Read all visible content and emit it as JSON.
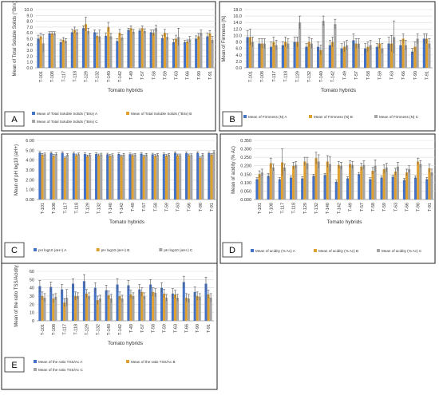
{
  "colors": {
    "A": "#4472C4",
    "B": "#E0A030",
    "C": "#A5A5A5",
    "errorbar": "#555555",
    "frame": "#222222",
    "grid": "#D9D9D9",
    "axis_text": "#333333"
  },
  "chart_data": [
    {
      "panel": "A",
      "type": "bar",
      "xlabel": "Tomato hybrids",
      "ylabel": "Mean of Total Soluble Solids (°Brix)",
      "ylim": [
        0.0,
        10.0
      ],
      "yticks": [
        "0.0",
        "1.0",
        "2.0",
        "3.0",
        "4.0",
        "5.0",
        "6.0",
        "7.0",
        "8.0",
        "9.0",
        "10.0"
      ],
      "categories": [
        "T-101",
        "T-108",
        "T-117",
        "T-118",
        "T-129",
        "T-132",
        "T-140",
        "T-142",
        "T-49",
        "T-57",
        "T-58",
        "T-59",
        "T-63",
        "T-66",
        "T-90",
        "T-91"
      ],
      "series": [
        {
          "name": "Mean of Total Soluble Solids (°Brix) A",
          "values": [
            5.0,
            5.9,
            4.4,
            6.1,
            6.8,
            6.1,
            5.5,
            4.6,
            6.5,
            6.4,
            6.1,
            5.1,
            4.4,
            4.4,
            5.0,
            5.4
          ],
          "errors": [
            0.6,
            0.3,
            0.4,
            0.5,
            0.4,
            0.4,
            0.5,
            0.4,
            0.3,
            0.3,
            0.4,
            0.5,
            0.5,
            0.3,
            0.5,
            0.6
          ]
        },
        {
          "name": "Mean of Total Soluble Solids (°Brix) B",
          "values": [
            5.4,
            5.9,
            4.8,
            6.5,
            7.5,
            5.5,
            7.0,
            6.0,
            6.8,
            6.8,
            6.0,
            6.0,
            5.0,
            4.5,
            5.4,
            5.9
          ],
          "errors": [
            0.5,
            0.3,
            0.4,
            0.5,
            1.2,
            0.5,
            0.8,
            0.6,
            0.4,
            0.4,
            0.5,
            0.6,
            0.6,
            0.3,
            0.5,
            0.5
          ]
        },
        {
          "name": "Mean of Total Soluble Solids (°Brix) C",
          "values": [
            4.2,
            5.9,
            4.6,
            6.1,
            6.3,
            5.4,
            5.4,
            5.2,
            6.2,
            6.3,
            6.8,
            5.3,
            5.3,
            4.9,
            6.0,
            4.8
          ],
          "errors": [
            1.5,
            0.3,
            0.4,
            0.4,
            0.5,
            1.1,
            0.5,
            0.5,
            0.4,
            0.4,
            0.5,
            0.5,
            1.5,
            0.5,
            0.5,
            0.6
          ]
        }
      ],
      "legend": [
        "Mean of Total Soluble Solids (°Brix) A",
        "Mean of Total Soluble Solids (°Brix) B",
        "Mean of Total Soluble Solids (°Brix) C"
      ]
    },
    {
      "panel": "B",
      "type": "bar",
      "xlabel": "Tomato  hybrids",
      "ylabel": "Mean of Firmness (N)",
      "ylim": [
        0.0,
        18.0
      ],
      "yticks": [
        "0.0",
        "2.0",
        "4.0",
        "6.0",
        "8.0",
        "10.0",
        "12.0",
        "14.0",
        "16.0",
        "18.0"
      ],
      "categories": [
        "T-101",
        "T-108",
        "T-117",
        "T-118",
        "T-129",
        "T-132",
        "T-140",
        "T-142",
        "T-49",
        "T-57",
        "T-58",
        "T-59",
        "T-63",
        "T-66",
        "T-90",
        "T-91"
      ],
      "series": [
        {
          "name": "Mean of Firmness (N) A",
          "values": [
            9.5,
            7.5,
            6.5,
            7.0,
            8.0,
            6.5,
            6.5,
            7.0,
            6.0,
            8.5,
            6.0,
            6.5,
            7.5,
            7.0,
            5.0,
            9.0
          ],
          "errors": [
            2.0,
            1.5,
            1.5,
            1.0,
            1.5,
            1.0,
            1.5,
            1.5,
            1.5,
            2.0,
            1.5,
            1.0,
            2.0,
            1.5,
            1.0,
            1.5
          ]
        },
        {
          "name": "Mean  of  Firmness (N) B",
          "values": [
            9.5,
            7.5,
            8.0,
            8.0,
            8.0,
            8.0,
            5.5,
            8.0,
            6.5,
            7.5,
            6.5,
            7.5,
            7.5,
            9.0,
            6.5,
            9.0
          ],
          "errors": [
            2.5,
            1.5,
            1.5,
            1.5,
            1.5,
            1.5,
            1.5,
            1.5,
            1.5,
            1.5,
            1.5,
            1.5,
            2.5,
            1.5,
            1.5,
            1.5
          ]
        },
        {
          "name": "Mean of Firmness (N) C",
          "values": [
            8.0,
            7.5,
            7.0,
            7.5,
            14.0,
            7.5,
            14.5,
            13.5,
            7.0,
            7.5,
            7.0,
            6.0,
            9.5,
            7.0,
            9.0,
            7.5
          ],
          "errors": [
            1.5,
            1.5,
            1.5,
            1.5,
            2.0,
            1.5,
            1.5,
            1.5,
            1.5,
            1.5,
            1.5,
            1.5,
            5.0,
            1.5,
            1.5,
            1.5
          ]
        }
      ],
      "legend": [
        "Mean of Firmness (N) A",
        "Mean  of  Firmness (N) B",
        "Mean of Firmness (N) C"
      ]
    },
    {
      "panel": "C",
      "type": "bar",
      "xlabel": "Tomato hybrids",
      "ylabel": "Mean of pH log10 (aH+)",
      "ylim": [
        0.0,
        6.0
      ],
      "yticks": [
        "0.00",
        "1.00",
        "2.00",
        "3.00",
        "4.00",
        "5.00",
        "6.00"
      ],
      "categories": [
        "T-101",
        "T-108",
        "T-117",
        "T-118",
        "T-129",
        "T-132",
        "T-140",
        "T-142",
        "T-49",
        "T-57",
        "T-58",
        "T-59",
        "T-63",
        "T-66",
        "T-90",
        "T-91"
      ],
      "series": [
        {
          "name": "pH log10 (aH+) A",
          "values": [
            4.75,
            4.72,
            4.73,
            4.68,
            4.62,
            4.62,
            4.58,
            4.62,
            4.6,
            4.65,
            4.58,
            4.6,
            4.72,
            4.7,
            4.73,
            4.7
          ],
          "errors": [
            0.12,
            0.12,
            0.12,
            0.12,
            0.12,
            0.12,
            0.12,
            0.12,
            0.12,
            0.12,
            0.12,
            0.12,
            0.12,
            0.12,
            0.12,
            0.12
          ]
        },
        {
          "name": "pH log10 (aH+) B",
          "values": [
            4.55,
            4.45,
            4.25,
            4.5,
            4.4,
            4.5,
            4.45,
            4.4,
            4.5,
            4.4,
            4.45,
            4.45,
            4.5,
            4.5,
            4.25,
            4.55
          ],
          "errors": [
            0.12,
            0.12,
            0.12,
            0.12,
            0.12,
            0.12,
            0.12,
            0.12,
            0.12,
            0.12,
            0.12,
            0.12,
            0.12,
            0.12,
            0.12,
            0.12
          ]
        },
        {
          "name": "pH log10 (aH+) C",
          "values": [
            4.6,
            4.62,
            4.55,
            4.6,
            4.55,
            4.58,
            4.52,
            4.55,
            4.55,
            4.55,
            4.55,
            4.55,
            4.5,
            4.52,
            4.55,
            4.8
          ],
          "errors": [
            0.12,
            0.12,
            0.12,
            0.12,
            0.12,
            0.12,
            0.12,
            0.12,
            0.12,
            0.12,
            0.12,
            0.12,
            0.12,
            0.12,
            0.12,
            0.15
          ]
        }
      ],
      "legend": [
        "pH log10 (aH+) A",
        "pH log10 (aH+) B",
        "pH log10 (aH+) C"
      ]
    },
    {
      "panel": "D",
      "type": "bar",
      "xlabel": "Tomato hybrids",
      "ylabel": "Mean of acidity (% Ac)",
      "ylim": [
        0.0,
        0.35
      ],
      "yticks": [
        "0.000",
        "0.050",
        "0.100",
        "0.150",
        "0.200",
        "0.250",
        "0.300",
        "0.350"
      ],
      "categories": [
        "T-101",
        "T-108",
        "T-117",
        "T-118",
        "T-129",
        "T-132",
        "T-140",
        "T-142",
        "T-49",
        "T-57",
        "T-58",
        "T-59",
        "T-63",
        "T-66",
        "T-90",
        "T-91"
      ],
      "series": [
        {
          "name": "Mean of acidity (% Ac) A",
          "values": [
            0.12,
            0.14,
            0.12,
            0.13,
            0.125,
            0.14,
            0.145,
            0.105,
            0.125,
            0.15,
            0.12,
            0.13,
            0.135,
            0.115,
            0.13,
            0.12
          ],
          "errors": [
            0.01,
            0.015,
            0.01,
            0.01,
            0.01,
            0.01,
            0.01,
            0.01,
            0.01,
            0.01,
            0.01,
            0.01,
            0.01,
            0.01,
            0.01,
            0.01
          ]
        },
        {
          "name": "Mean of acidity (% Ac) B",
          "values": [
            0.15,
            0.215,
            0.22,
            0.2,
            0.225,
            0.245,
            0.225,
            0.205,
            0.21,
            0.195,
            0.17,
            0.18,
            0.165,
            0.16,
            0.225,
            0.185
          ],
          "errors": [
            0.02,
            0.03,
            0.08,
            0.02,
            0.025,
            0.035,
            0.035,
            0.02,
            0.02,
            0.02,
            0.02,
            0.025,
            0.02,
            0.02,
            0.02,
            0.025
          ]
        },
        {
          "name": "Mean of acidity (% Ac) C",
          "values": [
            0.16,
            0.19,
            0.19,
            0.205,
            0.215,
            0.225,
            0.21,
            0.2,
            0.205,
            0.205,
            0.2,
            0.19,
            0.195,
            0.18,
            0.21,
            0.16
          ],
          "errors": [
            0.02,
            0.02,
            0.02,
            0.02,
            0.035,
            0.04,
            0.045,
            0.02,
            0.02,
            0.025,
            0.035,
            0.025,
            0.025,
            0.02,
            0.02,
            0.02
          ]
        }
      ],
      "legend": [
        "Mean of acidity (% Ac) A",
        "Mean of acidity (% Ac) B",
        "Mean of acidity (% Ac) C"
      ]
    },
    {
      "panel": "E",
      "type": "bar",
      "xlabel": "Tomato hybrids",
      "ylabel": "Mean of the ratio TSS/Acidity",
      "ylim": [
        0,
        60
      ],
      "yticks": [
        "0",
        "10",
        "20",
        "30",
        "40",
        "50",
        "60"
      ],
      "categories": [
        "T-101",
        "T-108",
        "T-117",
        "T-118",
        "T-129",
        "T-132",
        "T-140",
        "T-142",
        "T-49",
        "T-57",
        "T-58",
        "T-59",
        "T-63",
        "T-66",
        "T-90",
        "T-91"
      ],
      "series": [
        {
          "name": "Mean of the ratio TSS/Ac A",
          "values": [
            42,
            41,
            38,
            45,
            48,
            40,
            37,
            44,
            43,
            38,
            44,
            40,
            33,
            47,
            35,
            45
          ],
          "errors": [
            7,
            6,
            6,
            6,
            8,
            6,
            6,
            7,
            6,
            6,
            6,
            6,
            6,
            7,
            6,
            8
          ]
        },
        {
          "name": "Mean of the ratio TSS/Ac B",
          "values": [
            30,
            27,
            22,
            30,
            33,
            25,
            31,
            30,
            32,
            35,
            35,
            33,
            32,
            28,
            30,
            32
          ],
          "errors": [
            5,
            5,
            5,
            5,
            5,
            5,
            5,
            5,
            5,
            5,
            5,
            5,
            5,
            5,
            5,
            5
          ]
        },
        {
          "name": "Mean of the ratio TSS/Ac C",
          "values": [
            28,
            29,
            28,
            30,
            30,
            27,
            27,
            27,
            30,
            30,
            34,
            28,
            28,
            27,
            29,
            28
          ],
          "errors": [
            5,
            4,
            10,
            4,
            4,
            4,
            5,
            4,
            4,
            4,
            5,
            4,
            4,
            5,
            4,
            5
          ]
        }
      ],
      "legend": [
        "Mean of the ratio TSS/Ac A",
        "Mean of the ratio TSS/Ac B",
        "Mean of the ratio TSS/Ac C"
      ]
    }
  ]
}
